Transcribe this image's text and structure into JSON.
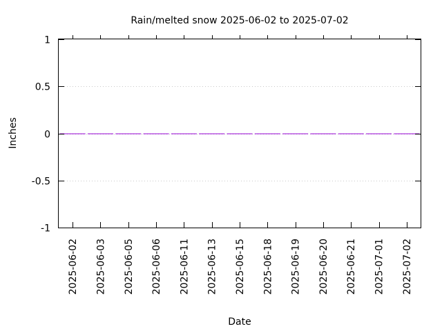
{
  "chart_data": {
    "type": "bar",
    "title": "Rain/melted snow 2025-06-02 to 2025-07-02",
    "xlabel": "Date",
    "ylabel": "Inches",
    "ylim": [
      -1,
      1
    ],
    "yticks": [
      -1,
      -0.5,
      0,
      0.5,
      1
    ],
    "ytick_labels": [
      "-1",
      "-0.5",
      "0",
      "0.5",
      "1"
    ],
    "grid": true,
    "categories": [
      "2025-06-02",
      "2025-06-03",
      "2025-06-05",
      "2025-06-06",
      "2025-06-11",
      "2025-06-13",
      "2025-06-15",
      "2025-06-18",
      "2025-06-19",
      "2025-06-20",
      "2025-06-21",
      "2025-07-01",
      "2025-07-02"
    ],
    "series": [
      {
        "name": "Rain/melted snow",
        "color": "#9400d3",
        "values": [
          0,
          0,
          0,
          0,
          0,
          0,
          0,
          0,
          0,
          0,
          0,
          0,
          0
        ]
      }
    ]
  }
}
